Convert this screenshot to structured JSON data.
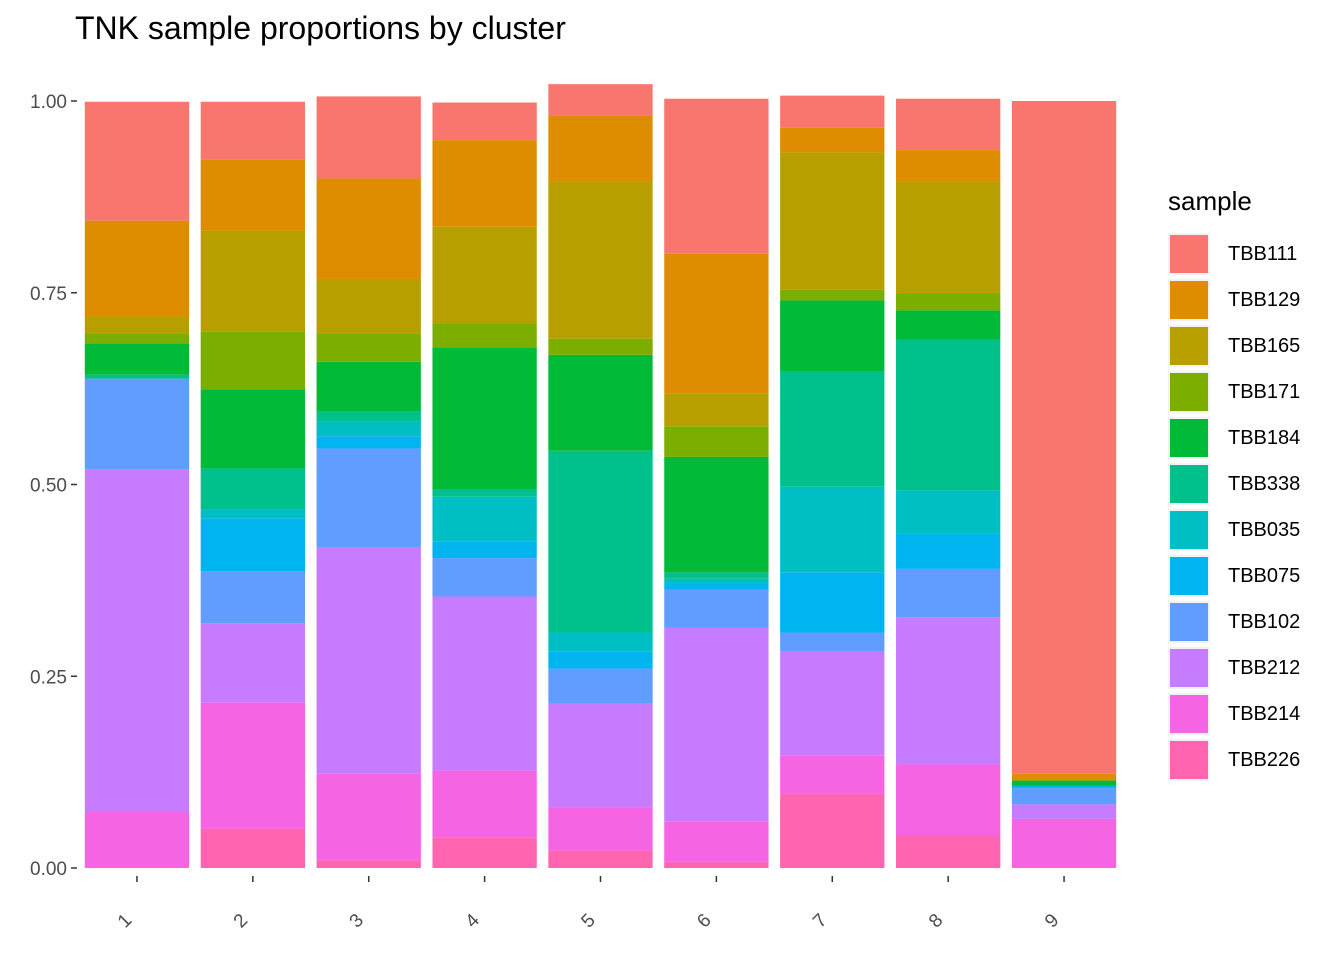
{
  "chart_data": {
    "type": "bar",
    "stacked": true,
    "title": "TNK sample proportions by cluster",
    "xlabel": "",
    "ylabel": "",
    "ylim": [
      0,
      1
    ],
    "yticks": [
      "0.00",
      "0.25",
      "0.50",
      "0.75",
      "1.00"
    ],
    "categories": [
      "1",
      "2",
      "3",
      "4",
      "5",
      "6",
      "7",
      "8",
      "9"
    ],
    "legend": {
      "title": "sample",
      "position": "right"
    },
    "series": [
      {
        "name": "TBB111",
        "color": "#F8766D",
        "values": [
          0.155,
          0.075,
          0.107,
          0.049,
          0.041,
          0.202,
          0.042,
          0.067,
          0.877
        ]
      },
      {
        "name": "TBB129",
        "color": "#DE8C00",
        "values": [
          0.125,
          0.093,
          0.131,
          0.113,
          0.086,
          0.182,
          0.032,
          0.041,
          0.009
        ]
      },
      {
        "name": "TBB165",
        "color": "#B79F00",
        "values": [
          0.022,
          0.132,
          0.071,
          0.126,
          0.205,
          0.043,
          0.179,
          0.146,
          0.0
        ]
      },
      {
        "name": "TBB171",
        "color": "#7CAE00",
        "values": [
          0.013,
          0.075,
          0.037,
          0.031,
          0.021,
          0.04,
          0.014,
          0.022,
          0.0
        ]
      },
      {
        "name": "TBB184",
        "color": "#00BA38",
        "values": [
          0.041,
          0.103,
          0.065,
          0.186,
          0.125,
          0.151,
          0.092,
          0.038,
          0.007
        ]
      },
      {
        "name": "TBB338",
        "color": "#00C08B",
        "values": [
          0.005,
          0.053,
          0.013,
          0.009,
          0.237,
          0.008,
          0.151,
          0.197,
          0.0
        ]
      },
      {
        "name": "TBB035",
        "color": "#00BFC4",
        "values": [
          0.0,
          0.012,
          0.019,
          0.058,
          0.025,
          0.006,
          0.112,
          0.056,
          0.0
        ]
      },
      {
        "name": "TBB075",
        "color": "#00B4F0",
        "values": [
          0.0,
          0.069,
          0.016,
          0.022,
          0.022,
          0.008,
          0.078,
          0.046,
          0.003
        ]
      },
      {
        "name": "TBB102",
        "color": "#619CFF",
        "values": [
          0.118,
          0.068,
          0.129,
          0.05,
          0.046,
          0.05,
          0.025,
          0.063,
          0.021
        ]
      },
      {
        "name": "TBB212",
        "color": "#C77CFF",
        "values": [
          0.447,
          0.103,
          0.295,
          0.227,
          0.135,
          0.252,
          0.135,
          0.192,
          0.019
        ]
      },
      {
        "name": "TBB214",
        "color": "#F564E3",
        "values": [
          0.073,
          0.165,
          0.113,
          0.087,
          0.056,
          0.053,
          0.05,
          0.092,
          0.064
        ]
      },
      {
        "name": "TBB226",
        "color": "#FF64B0",
        "values": [
          0.0,
          0.051,
          0.01,
          0.04,
          0.023,
          0.008,
          0.097,
          0.043,
          0.0
        ]
      }
    ]
  }
}
